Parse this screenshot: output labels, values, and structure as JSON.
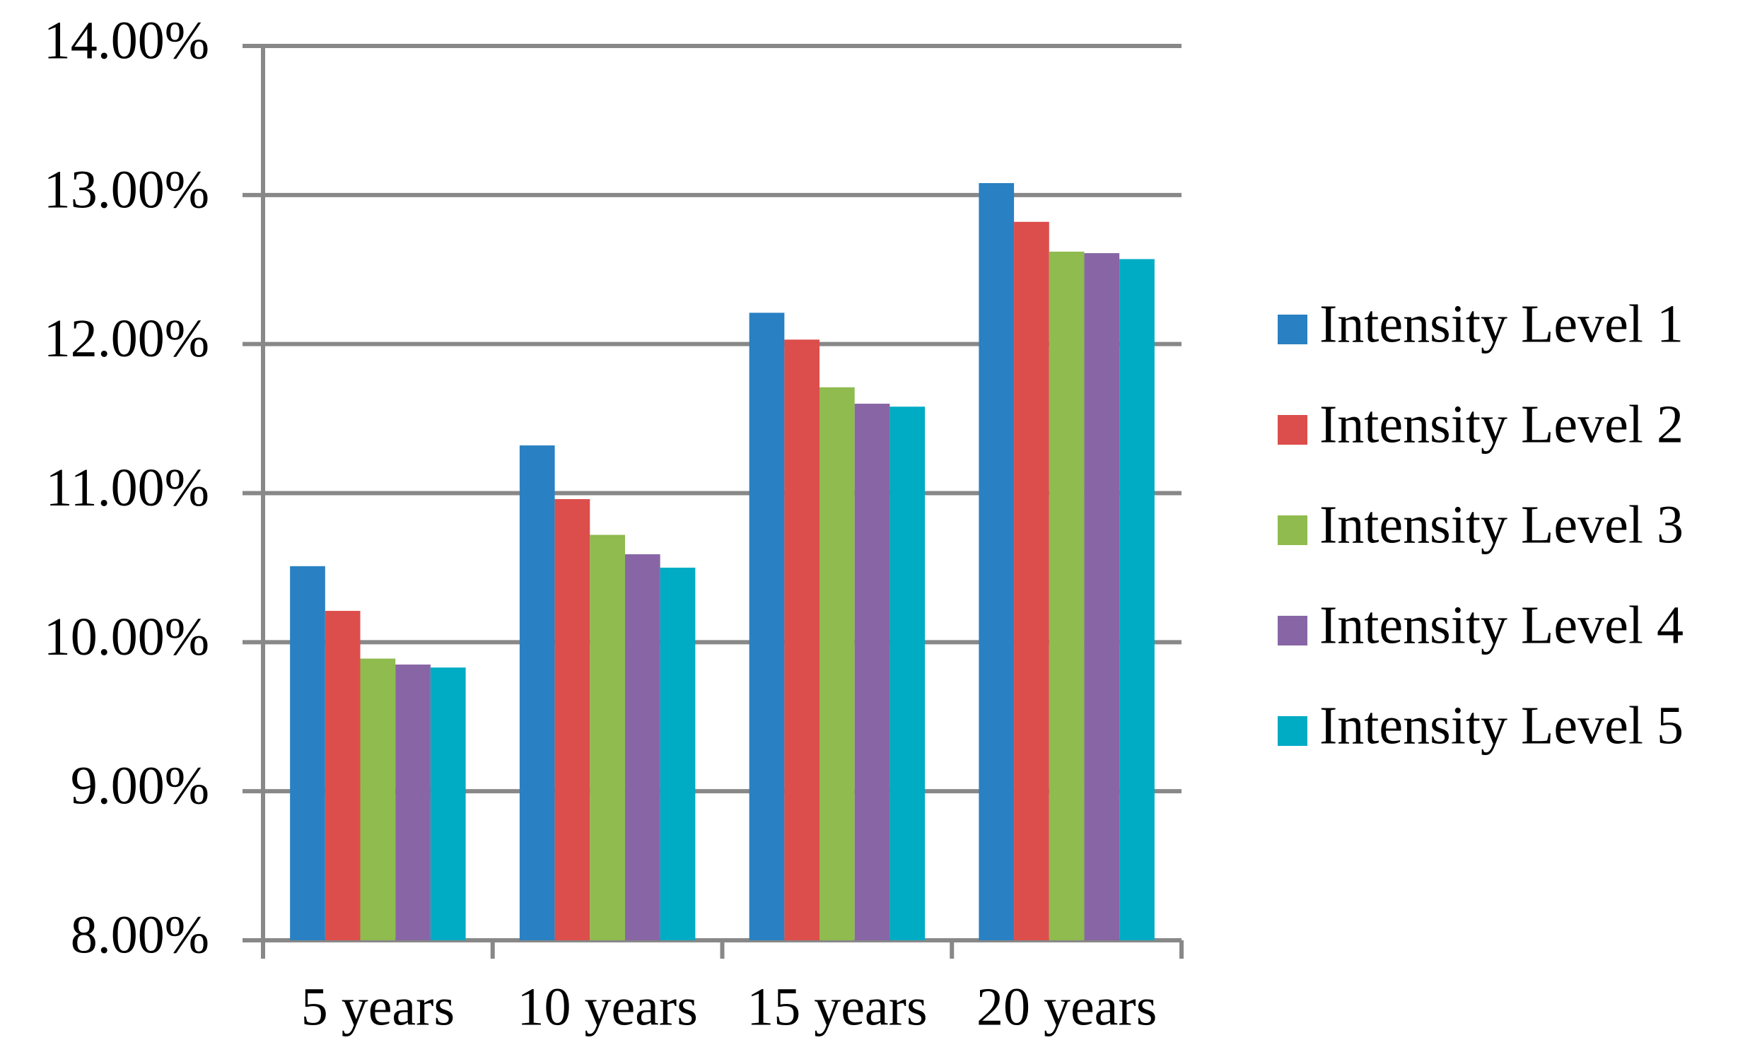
{
  "chart_data": {
    "type": "bar",
    "categories": [
      "5 years",
      "10 years",
      "15 years",
      "20 years"
    ],
    "series": [
      {
        "name": "Intensity Level 1",
        "color": "#2980c2",
        "values": [
          10.51,
          11.32,
          12.21,
          13.08
        ]
      },
      {
        "name": "Intensity Level 2",
        "color": "#dc4e4b",
        "values": [
          10.21,
          10.96,
          12.03,
          12.82
        ]
      },
      {
        "name": "Intensity Level 3",
        "color": "#8fbb4f",
        "values": [
          9.89,
          10.72,
          11.71,
          12.62
        ]
      },
      {
        "name": "Intensity Level 4",
        "color": "#8866a6",
        "values": [
          9.85,
          10.59,
          11.6,
          12.61
        ]
      },
      {
        "name": "Intensity Level 5",
        "color": "#00abc4",
        "values": [
          9.83,
          10.5,
          11.58,
          12.57
        ]
      }
    ],
    "ylim": [
      8,
      14
    ],
    "yticks": [
      {
        "value": 8,
        "label": "8.00%"
      },
      {
        "value": 9,
        "label": "9.00%"
      },
      {
        "value": 10,
        "label": "10.00%"
      },
      {
        "value": 11,
        "label": "11.00%"
      },
      {
        "value": 12,
        "label": "12.00%"
      },
      {
        "value": 13,
        "label": "13.00%"
      },
      {
        "value": 14,
        "label": "14.00%"
      }
    ],
    "grid": true,
    "legend": "right"
  }
}
